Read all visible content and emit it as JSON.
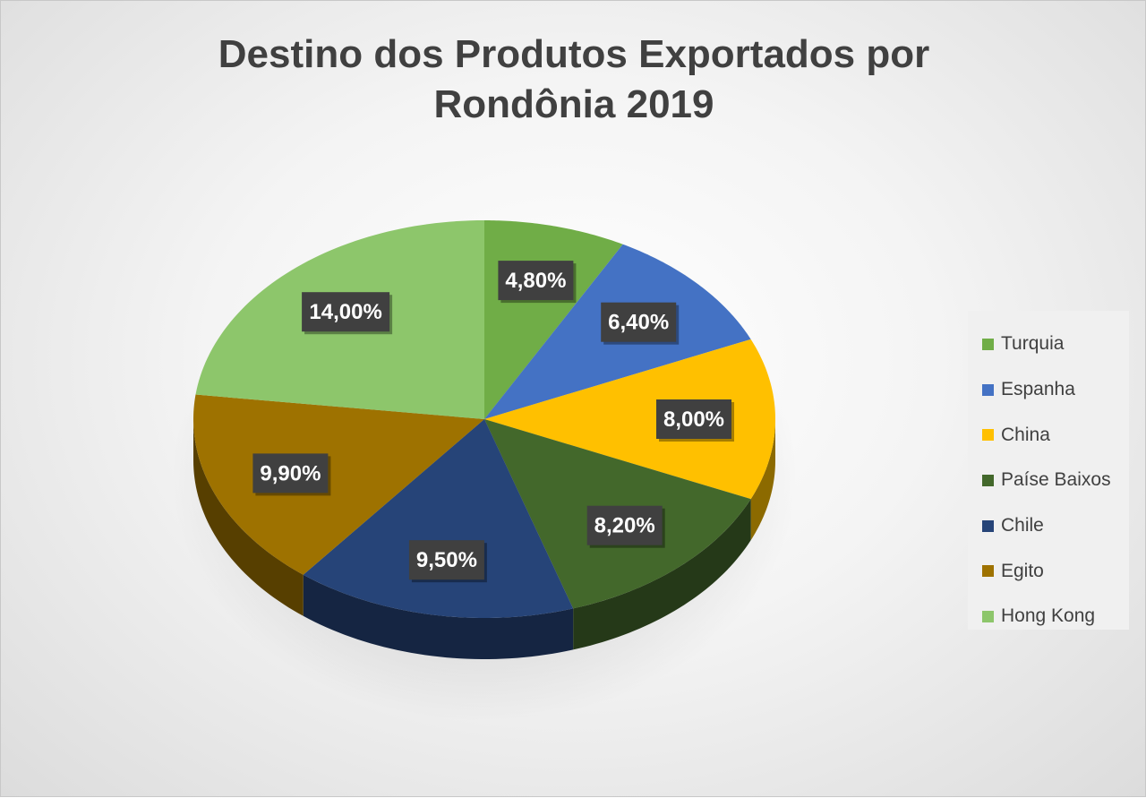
{
  "chart_data": {
    "type": "pie",
    "title": [
      "Destino dos Produtos Exportados por",
      "Rondônia 2019"
    ],
    "categories": [
      "Turquia",
      "Espanha",
      "China",
      "Paíse Baixos",
      "Chile",
      "Egito",
      "Hong Kong"
    ],
    "values": [
      4.8,
      6.4,
      8.0,
      8.2,
      9.5,
      9.9,
      14.0
    ],
    "data_labels": [
      "4,80%",
      "6,40%",
      "8,00%",
      "8,20%",
      "9,50%",
      "9,90%",
      "14,00%"
    ],
    "colors": [
      "#70ad47",
      "#4472c4",
      "#ffc000",
      "#43682b",
      "#264478",
      "#9e7200",
      "#8dc66b"
    ],
    "legend_position": "right",
    "style": "3d-pie"
  }
}
